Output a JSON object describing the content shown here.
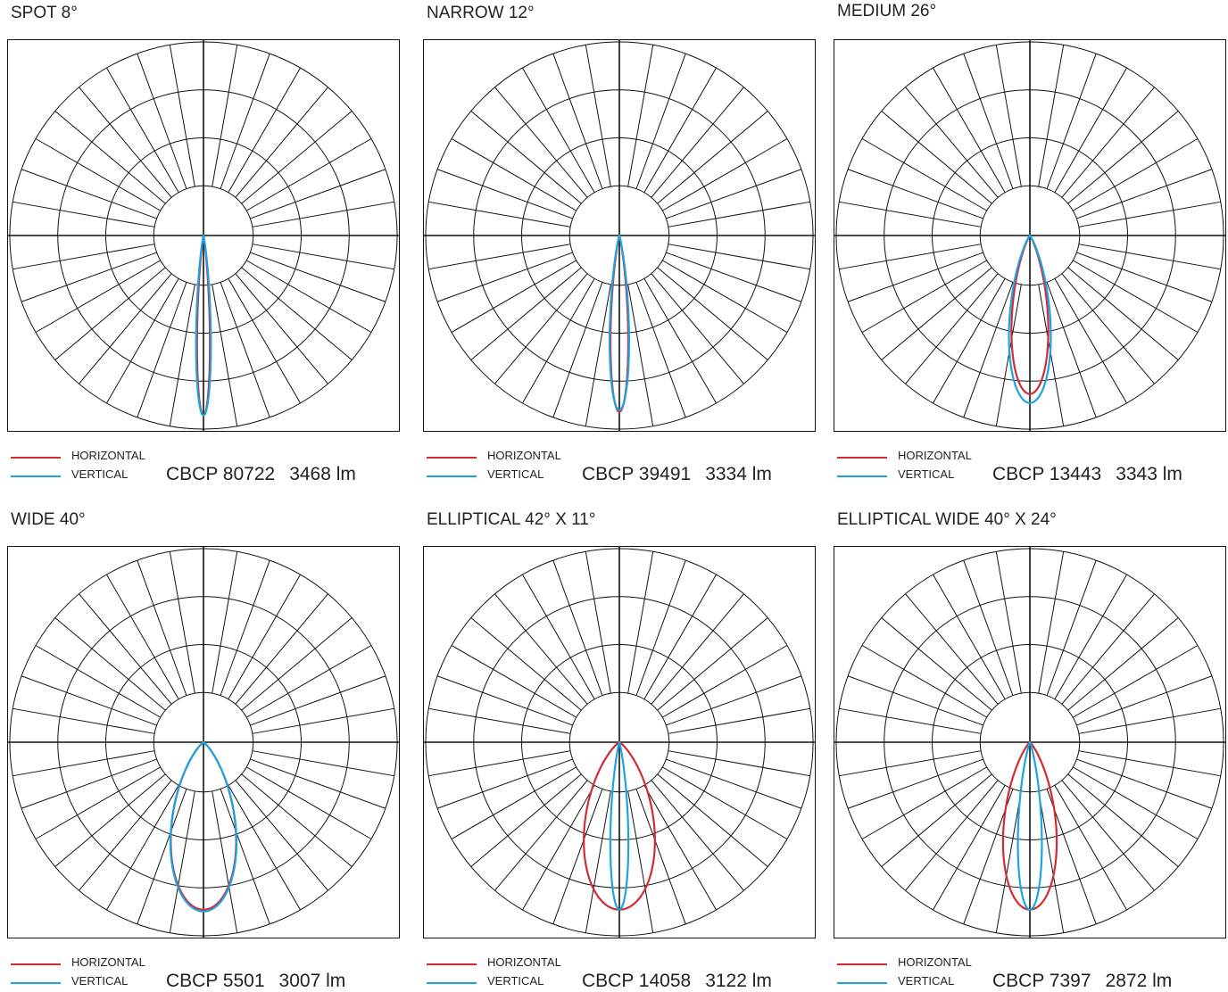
{
  "legend": {
    "horizontal_label": "HORIZONTAL",
    "vertical_label": "VERTICAL",
    "horizontal_color": "#d42a32",
    "vertical_color": "#1ba4e0"
  },
  "colors": {
    "grid": "#111111",
    "background": "#ffffff"
  },
  "chart_data": [
    {
      "type": "polar",
      "title": "SPOT 8°",
      "cbcp_label": "CBCP 80722",
      "lumens_label": "3468 lm",
      "beam_angle_deg": 8,
      "series": [
        {
          "name": "HORIZONTAL",
          "half_angle_deg": 4,
          "peak": 1.0,
          "exponent": 4
        },
        {
          "name": "VERTICAL",
          "half_angle_deg": 4.6,
          "peak": 1.0,
          "exponent": 4
        }
      ]
    },
    {
      "type": "polar",
      "title": "NARROW 12°",
      "cbcp_label": "CBCP 39491",
      "lumens_label": "3334 lm",
      "beam_angle_deg": 12,
      "series": [
        {
          "name": "HORIZONTAL",
          "half_angle_deg": 5.6,
          "peak": 0.98,
          "exponent": 4
        },
        {
          "name": "VERTICAL",
          "half_angle_deg": 6.2,
          "peak": 0.97,
          "exponent": 4
        }
      ]
    },
    {
      "type": "polar",
      "title": "MEDIUM 26°",
      "cbcp_label": "CBCP 13443",
      "lumens_label": "3343 lm",
      "beam_angle_deg": 26,
      "series": [
        {
          "name": "HORIZONTAL",
          "half_angle_deg": 13,
          "peak": 0.88,
          "exponent": 4
        },
        {
          "name": "VERTICAL",
          "half_angle_deg": 14,
          "peak": 0.93,
          "exponent": 4
        }
      ]
    },
    {
      "type": "polar",
      "title": "WIDE 40°",
      "cbcp_label": "CBCP 5501",
      "lumens_label": "3007 lm",
      "beam_angle_deg": 40,
      "series": [
        {
          "name": "HORIZONTAL",
          "half_angle_deg": 22,
          "peak": 0.93,
          "exponent": 6
        },
        {
          "name": "VERTICAL",
          "half_angle_deg": 22,
          "peak": 0.94,
          "exponent": 6
        }
      ]
    },
    {
      "type": "polar",
      "title": "ELLIPTICAL 42° X 11°",
      "cbcp_label": "CBCP 14058",
      "lumens_label": "3122 lm",
      "beam_angle_deg": 42,
      "series": [
        {
          "name": "HORIZONTAL",
          "half_angle_deg": 24,
          "peak": 0.93,
          "exponent": 6
        },
        {
          "name": "VERTICAL",
          "half_angle_deg": 6,
          "peak": 0.93,
          "exponent": 4
        }
      ]
    },
    {
      "type": "polar",
      "title": "ELLIPTICAL WIDE 40° X 24°",
      "cbcp_label": "CBCP 7397",
      "lumens_label": "2872 lm",
      "beam_angle_deg": 40,
      "series": [
        {
          "name": "HORIZONTAL",
          "half_angle_deg": 18,
          "peak": 0.93,
          "exponent": 6
        },
        {
          "name": "VERTICAL",
          "half_angle_deg": 8,
          "peak": 0.93,
          "exponent": 4
        }
      ]
    }
  ]
}
